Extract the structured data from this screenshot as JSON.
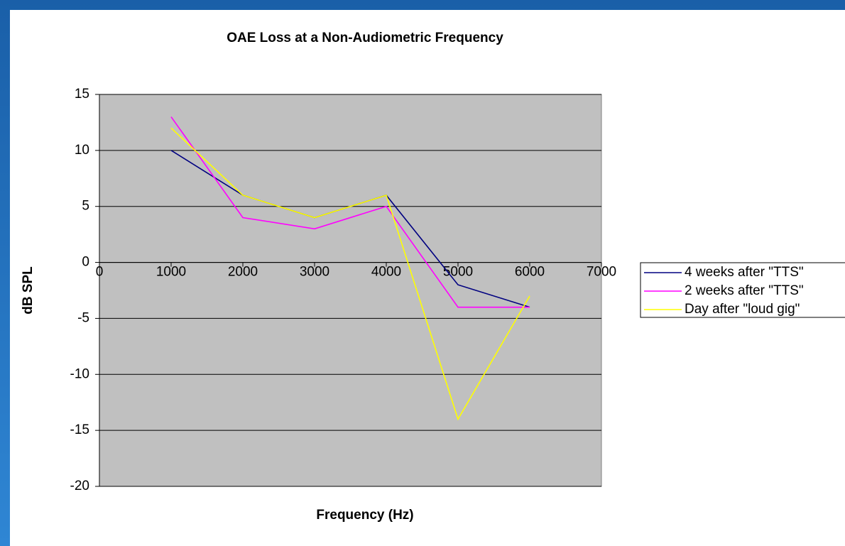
{
  "chart_data": {
    "type": "line",
    "title": "OAE Loss at a Non-Audiometric Frequency",
    "x_label": "Frequency (Hz)",
    "y_label": "dB SPL",
    "x": [
      1000,
      2000,
      3000,
      4000,
      5000,
      6000
    ],
    "series": [
      {
        "name": "4 weeks after \"TTS\"",
        "color": "#000080",
        "values": [
          10,
          6,
          4,
          6,
          -2,
          -4
        ]
      },
      {
        "name": "2 weeks after \"TTS\"",
        "color": "#ff00ff",
        "values": [
          13,
          4,
          3,
          5,
          -4,
          -4
        ]
      },
      {
        "name": "Day after \"loud gig\"",
        "color": "#ffff00",
        "values": [
          12,
          6,
          4,
          6,
          -14,
          -3
        ]
      }
    ],
    "xlim": [
      0,
      7000
    ],
    "xticks": [
      0,
      1000,
      2000,
      3000,
      4000,
      5000,
      6000,
      7000
    ],
    "ylim": [
      -20,
      15
    ],
    "yticks": [
      -20,
      -15,
      -10,
      -5,
      0,
      5,
      10,
      15
    ],
    "grid": true,
    "legend": "right"
  }
}
